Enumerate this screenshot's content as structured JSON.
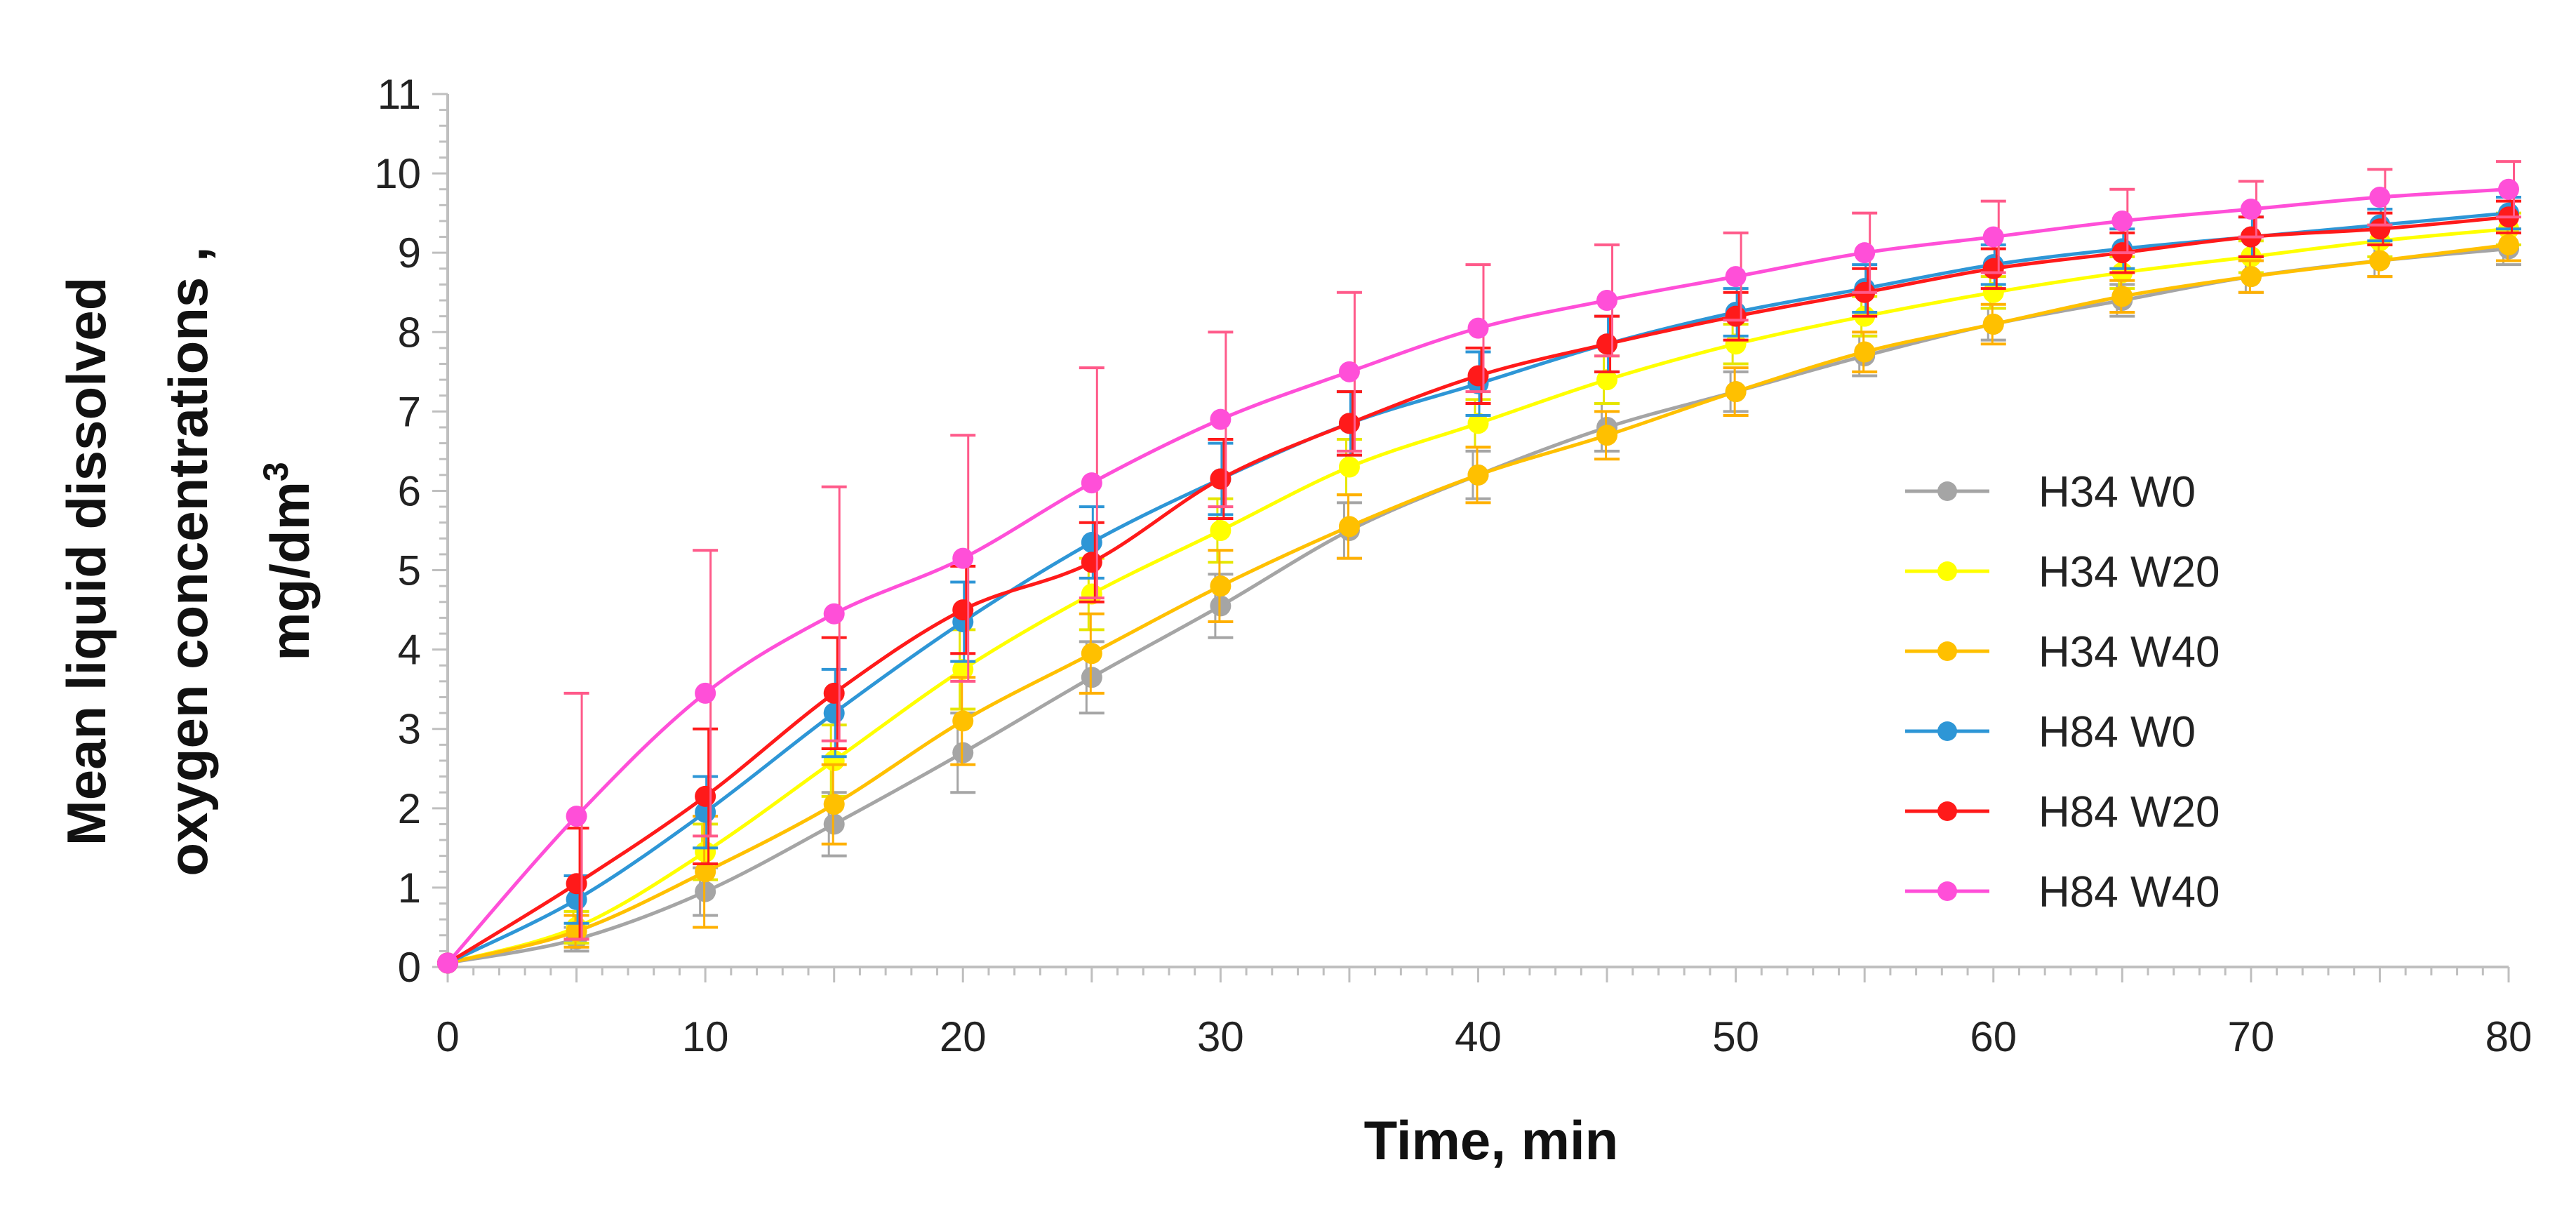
{
  "chart_data": {
    "type": "line",
    "title": "",
    "xlabel": "Time, min",
    "ylabel_lines": [
      "Mean liquid dissolved",
      "oxygen concentrations ,",
      "mg/dm"
    ],
    "ylabel_superscript": "3",
    "xlim": [
      0,
      80
    ],
    "ylim": [
      0,
      11
    ],
    "xticks": [
      "0",
      "10",
      "20",
      "30",
      "40",
      "50",
      "60",
      "70",
      "80"
    ],
    "yticks": [
      "0",
      "1",
      "2",
      "3",
      "4",
      "5",
      "6",
      "7",
      "8",
      "9",
      "10",
      "11"
    ],
    "x": [
      0,
      5,
      10,
      15,
      20,
      25,
      30,
      35,
      40,
      45,
      50,
      55,
      60,
      65,
      70,
      75,
      80
    ],
    "grid": false,
    "legend_position": "right",
    "series": [
      {
        "name": "H34 W0",
        "color": "#A5A5A5",
        "errcolor": "#A5A5A5",
        "values": [
          0.05,
          0.35,
          0.95,
          1.8,
          2.7,
          3.65,
          4.55,
          5.5,
          6.2,
          6.8,
          7.25,
          7.7,
          8.1,
          8.4,
          8.7,
          8.9,
          9.05
        ],
        "errors": [
          0,
          0.15,
          0.3,
          0.4,
          0.5,
          0.45,
          0.4,
          0.35,
          0.3,
          0.3,
          0.25,
          0.25,
          0.2,
          0.2,
          0.2,
          0.2,
          0.2
        ]
      },
      {
        "name": "H34 W20",
        "color": "#FFFF00",
        "errcolor": "#E6E600",
        "values": [
          0.05,
          0.5,
          1.45,
          2.6,
          3.75,
          4.7,
          5.5,
          6.3,
          6.85,
          7.4,
          7.85,
          8.2,
          8.5,
          8.75,
          8.95,
          9.15,
          9.3
        ],
        "errors": [
          0,
          0.2,
          0.35,
          0.45,
          0.5,
          0.45,
          0.4,
          0.35,
          0.3,
          0.3,
          0.25,
          0.25,
          0.2,
          0.2,
          0.2,
          0.2,
          0.2
        ]
      },
      {
        "name": "H34 W40",
        "color": "#FFC000",
        "errcolor": "#FFB000",
        "values": [
          0.05,
          0.45,
          1.2,
          2.05,
          3.1,
          3.95,
          4.8,
          5.55,
          6.2,
          6.7,
          7.25,
          7.75,
          8.1,
          8.45,
          8.7,
          8.9,
          9.1
        ],
        "errors": [
          0,
          0.2,
          0.7,
          0.5,
          0.55,
          0.5,
          0.45,
          0.4,
          0.35,
          0.3,
          0.3,
          0.25,
          0.25,
          0.2,
          0.2,
          0.2,
          0.2
        ]
      },
      {
        "name": "H84 W0",
        "color": "#2E96D6",
        "errcolor": "#2E96D6",
        "values": [
          0.05,
          0.85,
          1.95,
          3.2,
          4.35,
          5.35,
          6.15,
          6.85,
          7.35,
          7.85,
          8.25,
          8.55,
          8.85,
          9.05,
          9.2,
          9.35,
          9.5
        ],
        "errors": [
          0,
          0.3,
          0.45,
          0.55,
          0.5,
          0.45,
          0.45,
          0.4,
          0.4,
          0.35,
          0.3,
          0.3,
          0.25,
          0.25,
          0.25,
          0.2,
          0.2
        ]
      },
      {
        "name": "H84 W20",
        "color": "#FF1A1A",
        "errcolor": "#FF1A1A",
        "values": [
          0.05,
          1.05,
          2.15,
          3.45,
          4.5,
          5.1,
          6.15,
          6.85,
          7.45,
          7.85,
          8.2,
          8.5,
          8.8,
          9.0,
          9.2,
          9.3,
          9.45
        ],
        "errors": [
          0,
          0.7,
          0.85,
          0.7,
          0.55,
          0.5,
          0.5,
          0.4,
          0.35,
          0.35,
          0.3,
          0.3,
          0.25,
          0.25,
          0.25,
          0.2,
          0.2
        ]
      },
      {
        "name": "H84 W40",
        "color": "#FF4FD8",
        "errcolor": "#FF5A8A",
        "values": [
          0.05,
          1.9,
          3.45,
          4.45,
          5.15,
          6.1,
          6.9,
          7.5,
          8.05,
          8.4,
          8.7,
          9.0,
          9.2,
          9.4,
          9.55,
          9.7,
          9.8
        ],
        "errors": [
          0,
          1.55,
          1.8,
          1.6,
          1.55,
          1.45,
          1.1,
          1.0,
          0.8,
          0.7,
          0.55,
          0.5,
          0.45,
          0.4,
          0.35,
          0.35,
          0.35
        ]
      }
    ]
  }
}
